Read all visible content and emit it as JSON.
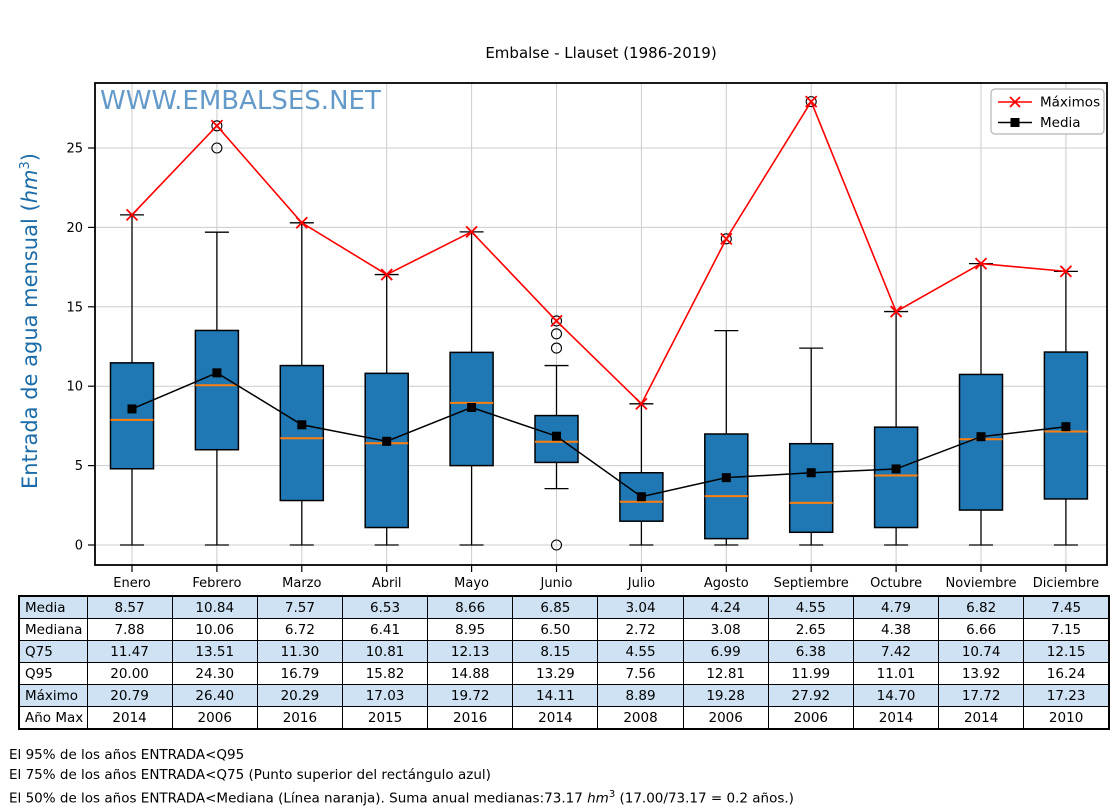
{
  "title": "Embalse - Llauset (1986-2019)",
  "watermark": "WWW.EMBALSES.NET",
  "ylabel": {
    "prefix": "Entrada de agua mensual (",
    "unit": "hm",
    "sup": "3",
    "suffix": ")"
  },
  "legend": {
    "items": [
      {
        "label": "Máximos",
        "color": "#ff0000",
        "marker": "x"
      },
      {
        "label": "Media",
        "color": "#000000",
        "marker": "square"
      }
    ]
  },
  "chart_data": {
    "type": "boxplot",
    "title": "Embalse - Llauset (1986-2019)",
    "ylabel": "Entrada de agua mensual (hm3)",
    "categories": [
      "Enero",
      "Febrero",
      "Marzo",
      "Abril",
      "Mayo",
      "Junio",
      "Julio",
      "Agosto",
      "Septiembre",
      "Octubre",
      "Noviembre",
      "Diciembre"
    ],
    "yticks": [
      0,
      5,
      10,
      15,
      20,
      25
    ],
    "ylim": [
      -1.3,
      29.1
    ],
    "grid": true,
    "legend_position": "upper right",
    "box_color": "#1f77b4",
    "median_color": "#ff7f0e",
    "boxes": [
      {
        "month": "Enero",
        "q1": 4.8,
        "median": 7.88,
        "q3": 11.47,
        "whisker_low": 0,
        "whisker_high": 20.79,
        "outliers": []
      },
      {
        "month": "Febrero",
        "q1": 6.0,
        "median": 10.06,
        "q3": 13.51,
        "whisker_low": 0,
        "whisker_high": 19.7,
        "outliers": [
          25.0,
          26.4
        ]
      },
      {
        "month": "Marzo",
        "q1": 2.8,
        "median": 6.72,
        "q3": 11.3,
        "whisker_low": 0,
        "whisker_high": 20.29,
        "outliers": []
      },
      {
        "month": "Abril",
        "q1": 1.1,
        "median": 6.41,
        "q3": 10.81,
        "whisker_low": 0,
        "whisker_high": 17.03,
        "outliers": []
      },
      {
        "month": "Mayo",
        "q1": 5.0,
        "median": 8.95,
        "q3": 12.13,
        "whisker_low": 0,
        "whisker_high": 19.72,
        "outliers": []
      },
      {
        "month": "Junio",
        "q1": 5.2,
        "median": 6.5,
        "q3": 8.15,
        "whisker_low": 3.55,
        "whisker_high": 11.3,
        "outliers": [
          12.4,
          13.3,
          14.11,
          0.0
        ]
      },
      {
        "month": "Julio",
        "q1": 1.5,
        "median": 2.72,
        "q3": 4.55,
        "whisker_low": 0,
        "whisker_high": 8.89,
        "outliers": []
      },
      {
        "month": "Agosto",
        "q1": 0.4,
        "median": 3.08,
        "q3": 6.99,
        "whisker_low": 0,
        "whisker_high": 13.5,
        "outliers": [
          19.28
        ]
      },
      {
        "month": "Septiembre",
        "q1": 0.8,
        "median": 2.65,
        "q3": 6.38,
        "whisker_low": 0,
        "whisker_high": 12.4,
        "outliers": [
          27.92
        ]
      },
      {
        "month": "Octubre",
        "q1": 1.1,
        "median": 4.38,
        "q3": 7.42,
        "whisker_low": 0,
        "whisker_high": 14.7,
        "outliers": []
      },
      {
        "month": "Noviembre",
        "q1": 2.2,
        "median": 6.66,
        "q3": 10.74,
        "whisker_low": 0,
        "whisker_high": 17.72,
        "outliers": []
      },
      {
        "month": "Diciembre",
        "q1": 2.9,
        "median": 7.15,
        "q3": 12.15,
        "whisker_low": 0,
        "whisker_high": 17.23,
        "outliers": []
      }
    ],
    "series": [
      {
        "name": "Máximos",
        "color": "#ff0000",
        "marker": "x",
        "values": [
          20.79,
          26.4,
          20.29,
          17.03,
          19.72,
          14.11,
          8.89,
          19.28,
          27.92,
          14.7,
          17.72,
          17.23
        ]
      },
      {
        "name": "Media",
        "color": "#000000",
        "marker": "square",
        "values": [
          8.57,
          10.84,
          7.57,
          6.53,
          8.66,
          6.85,
          3.04,
          4.24,
          4.55,
          4.79,
          6.82,
          7.45
        ]
      }
    ]
  },
  "table": {
    "stripe_color": "#cfe2f3",
    "row_labels": [
      "Media",
      "Mediana",
      "Q75",
      "Q95",
      "Máximo",
      "Año Max"
    ],
    "columns": [
      "Enero",
      "Febrero",
      "Marzo",
      "Abril",
      "Mayo",
      "Junio",
      "Julio",
      "Agosto",
      "Septiembre",
      "Octubre",
      "Noviembre",
      "Diciembre"
    ],
    "rows": [
      [
        "8.57",
        "10.84",
        "7.57",
        "6.53",
        "8.66",
        "6.85",
        "3.04",
        "4.24",
        "4.55",
        "4.79",
        "6.82",
        "7.45"
      ],
      [
        "7.88",
        "10.06",
        "6.72",
        "6.41",
        "8.95",
        "6.50",
        "2.72",
        "3.08",
        "2.65",
        "4.38",
        "6.66",
        "7.15"
      ],
      [
        "11.47",
        "13.51",
        "11.30",
        "10.81",
        "12.13",
        "8.15",
        "4.55",
        "6.99",
        "6.38",
        "7.42",
        "10.74",
        "12.15"
      ],
      [
        "20.00",
        "24.30",
        "16.79",
        "15.82",
        "14.88",
        "13.29",
        "7.56",
        "12.81",
        "11.99",
        "11.01",
        "13.92",
        "16.24"
      ],
      [
        "20.79",
        "26.40",
        "20.29",
        "17.03",
        "19.72",
        "14.11",
        "8.89",
        "19.28",
        "27.92",
        "14.70",
        "17.72",
        "17.23"
      ],
      [
        "2014",
        "2006",
        "2016",
        "2015",
        "2016",
        "2014",
        "2008",
        "2006",
        "2006",
        "2014",
        "2014",
        "2010"
      ]
    ]
  },
  "footnotes": [
    {
      "pre": "El 95% de los años ENTRADA<Q95",
      "unit": "",
      "sup": "",
      "post": ""
    },
    {
      "pre": "El 75% de los años ENTRADA<Q75 (Punto superior del rectángulo azul)",
      "unit": "",
      "sup": "",
      "post": ""
    },
    {
      "pre": "El 50% de los años ENTRADA<Mediana (Línea naranja). Suma anual medianas:73.17 ",
      "unit": "hm",
      "sup": "3",
      "post": " (17.00/73.17 = 0.2 años.)"
    }
  ]
}
